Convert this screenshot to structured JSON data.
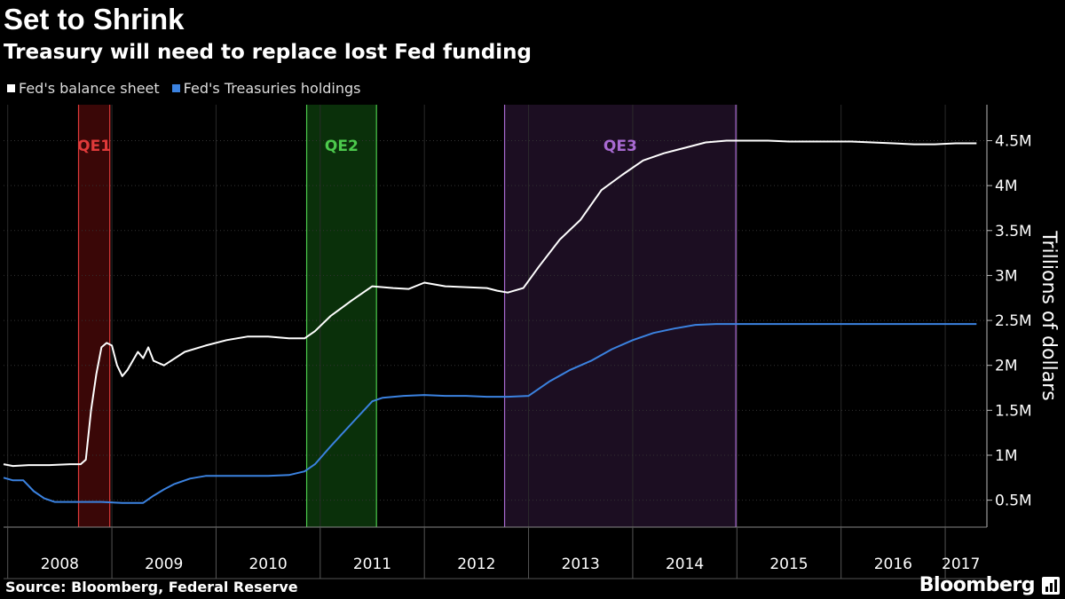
{
  "header": {
    "title": "Set to Shrink",
    "subtitle": "Treasury will need to replace lost Fed funding"
  },
  "footer": {
    "source": "Source: Bloomberg, Federal Reserve",
    "brand": "Bloomberg"
  },
  "colors": {
    "background": "#000000",
    "balance_sheet": "#ffffff",
    "treasuries": "#3b82e0",
    "qe1": "#e03a3a",
    "qe2": "#4cc94c",
    "qe3": "#a86ad1"
  },
  "chart_data": {
    "type": "line",
    "title": "Set to Shrink",
    "subtitle": "Treasury will need to replace lost Fed funding",
    "ylabel": "Trillions of dollars",
    "xlim": [
      2007.96,
      2017.4
    ],
    "ylim": [
      0.2,
      4.9
    ],
    "y_ticks": [
      {
        "value": 0.5,
        "label": "0.5M"
      },
      {
        "value": 1.0,
        "label": "1M"
      },
      {
        "value": 1.5,
        "label": "1.5M"
      },
      {
        "value": 2.0,
        "label": "2M"
      },
      {
        "value": 2.5,
        "label": "2.5M"
      },
      {
        "value": 3.0,
        "label": "3M"
      },
      {
        "value": 3.5,
        "label": "3.5M"
      },
      {
        "value": 4.0,
        "label": "4M"
      },
      {
        "value": 4.5,
        "label": "4.5M"
      }
    ],
    "x_ticks": [
      {
        "value": 2008.5,
        "label": "2008"
      },
      {
        "value": 2009.5,
        "label": "2009"
      },
      {
        "value": 2010.5,
        "label": "2010"
      },
      {
        "value": 2011.5,
        "label": "2011"
      },
      {
        "value": 2012.5,
        "label": "2012"
      },
      {
        "value": 2013.5,
        "label": "2013"
      },
      {
        "value": 2014.5,
        "label": "2014"
      },
      {
        "value": 2015.5,
        "label": "2015"
      },
      {
        "value": 2016.5,
        "label": "2016"
      },
      {
        "value": 2017.15,
        "label": "2017"
      }
    ],
    "x_dividers": [
      2008,
      2009,
      2010,
      2011,
      2012,
      2013,
      2014,
      2015,
      2016,
      2017
    ],
    "shaded_periods": [
      {
        "label": "QE1",
        "start": 2008.68,
        "end": 2008.98,
        "color": "#e03a3a",
        "fill": "#3a0707"
      },
      {
        "label": "QE2",
        "start": 2010.87,
        "end": 2011.54,
        "color": "#4cc94c",
        "fill": "#0a300a"
      },
      {
        "label": "QE3",
        "start": 2012.77,
        "end": 2014.99,
        "color": "#a86ad1",
        "fill": "#1c0e22"
      }
    ],
    "series": [
      {
        "name": "Fed's balance sheet",
        "color": "#ffffff",
        "points": [
          [
            2007.96,
            0.9
          ],
          [
            2008.05,
            0.88
          ],
          [
            2008.2,
            0.89
          ],
          [
            2008.4,
            0.89
          ],
          [
            2008.6,
            0.9
          ],
          [
            2008.7,
            0.9
          ],
          [
            2008.75,
            0.95
          ],
          [
            2008.8,
            1.5
          ],
          [
            2008.85,
            1.9
          ],
          [
            2008.9,
            2.2
          ],
          [
            2008.95,
            2.25
          ],
          [
            2009.0,
            2.22
          ],
          [
            2009.05,
            2.0
          ],
          [
            2009.1,
            1.88
          ],
          [
            2009.15,
            1.95
          ],
          [
            2009.2,
            2.05
          ],
          [
            2009.25,
            2.15
          ],
          [
            2009.3,
            2.08
          ],
          [
            2009.35,
            2.2
          ],
          [
            2009.4,
            2.05
          ],
          [
            2009.5,
            2.0
          ],
          [
            2009.7,
            2.15
          ],
          [
            2009.9,
            2.22
          ],
          [
            2010.1,
            2.28
          ],
          [
            2010.3,
            2.32
          ],
          [
            2010.5,
            2.32
          ],
          [
            2010.7,
            2.3
          ],
          [
            2010.85,
            2.3
          ],
          [
            2010.95,
            2.38
          ],
          [
            2011.1,
            2.55
          ],
          [
            2011.3,
            2.72
          ],
          [
            2011.5,
            2.88
          ],
          [
            2011.7,
            2.86
          ],
          [
            2011.85,
            2.85
          ],
          [
            2012.0,
            2.92
          ],
          [
            2012.2,
            2.88
          ],
          [
            2012.4,
            2.87
          ],
          [
            2012.6,
            2.86
          ],
          [
            2012.7,
            2.83
          ],
          [
            2012.8,
            2.81
          ],
          [
            2012.95,
            2.86
          ],
          [
            2013.1,
            3.1
          ],
          [
            2013.3,
            3.4
          ],
          [
            2013.5,
            3.62
          ],
          [
            2013.7,
            3.95
          ],
          [
            2013.9,
            4.12
          ],
          [
            2014.1,
            4.28
          ],
          [
            2014.3,
            4.36
          ],
          [
            2014.5,
            4.42
          ],
          [
            2014.7,
            4.48
          ],
          [
            2014.9,
            4.5
          ],
          [
            2015.1,
            4.5
          ],
          [
            2015.3,
            4.5
          ],
          [
            2015.5,
            4.49
          ],
          [
            2015.7,
            4.49
          ],
          [
            2015.9,
            4.49
          ],
          [
            2016.1,
            4.49
          ],
          [
            2016.3,
            4.48
          ],
          [
            2016.5,
            4.47
          ],
          [
            2016.7,
            4.46
          ],
          [
            2016.9,
            4.46
          ],
          [
            2017.1,
            4.47
          ],
          [
            2017.3,
            4.47
          ]
        ]
      },
      {
        "name": "Fed's Treasuries holdings",
        "color": "#3b82e0",
        "points": [
          [
            2007.96,
            0.75
          ],
          [
            2008.05,
            0.72
          ],
          [
            2008.15,
            0.72
          ],
          [
            2008.25,
            0.6
          ],
          [
            2008.35,
            0.52
          ],
          [
            2008.45,
            0.48
          ],
          [
            2008.6,
            0.48
          ],
          [
            2008.75,
            0.48
          ],
          [
            2008.9,
            0.48
          ],
          [
            2009.1,
            0.47
          ],
          [
            2009.3,
            0.47
          ],
          [
            2009.4,
            0.55
          ],
          [
            2009.5,
            0.62
          ],
          [
            2009.6,
            0.68
          ],
          [
            2009.75,
            0.74
          ],
          [
            2009.9,
            0.77
          ],
          [
            2010.2,
            0.77
          ],
          [
            2010.5,
            0.77
          ],
          [
            2010.7,
            0.78
          ],
          [
            2010.85,
            0.82
          ],
          [
            2010.95,
            0.9
          ],
          [
            2011.1,
            1.1
          ],
          [
            2011.3,
            1.35
          ],
          [
            2011.5,
            1.6
          ],
          [
            2011.6,
            1.64
          ],
          [
            2011.8,
            1.66
          ],
          [
            2012.0,
            1.67
          ],
          [
            2012.2,
            1.66
          ],
          [
            2012.4,
            1.66
          ],
          [
            2012.6,
            1.65
          ],
          [
            2012.8,
            1.65
          ],
          [
            2013.0,
            1.66
          ],
          [
            2013.2,
            1.82
          ],
          [
            2013.4,
            1.95
          ],
          [
            2013.6,
            2.05
          ],
          [
            2013.8,
            2.18
          ],
          [
            2014.0,
            2.28
          ],
          [
            2014.2,
            2.36
          ],
          [
            2014.4,
            2.41
          ],
          [
            2014.6,
            2.45
          ],
          [
            2014.8,
            2.46
          ],
          [
            2015.0,
            2.46
          ],
          [
            2015.5,
            2.46
          ],
          [
            2016.0,
            2.46
          ],
          [
            2016.5,
            2.46
          ],
          [
            2017.0,
            2.46
          ],
          [
            2017.3,
            2.46
          ]
        ]
      }
    ]
  }
}
